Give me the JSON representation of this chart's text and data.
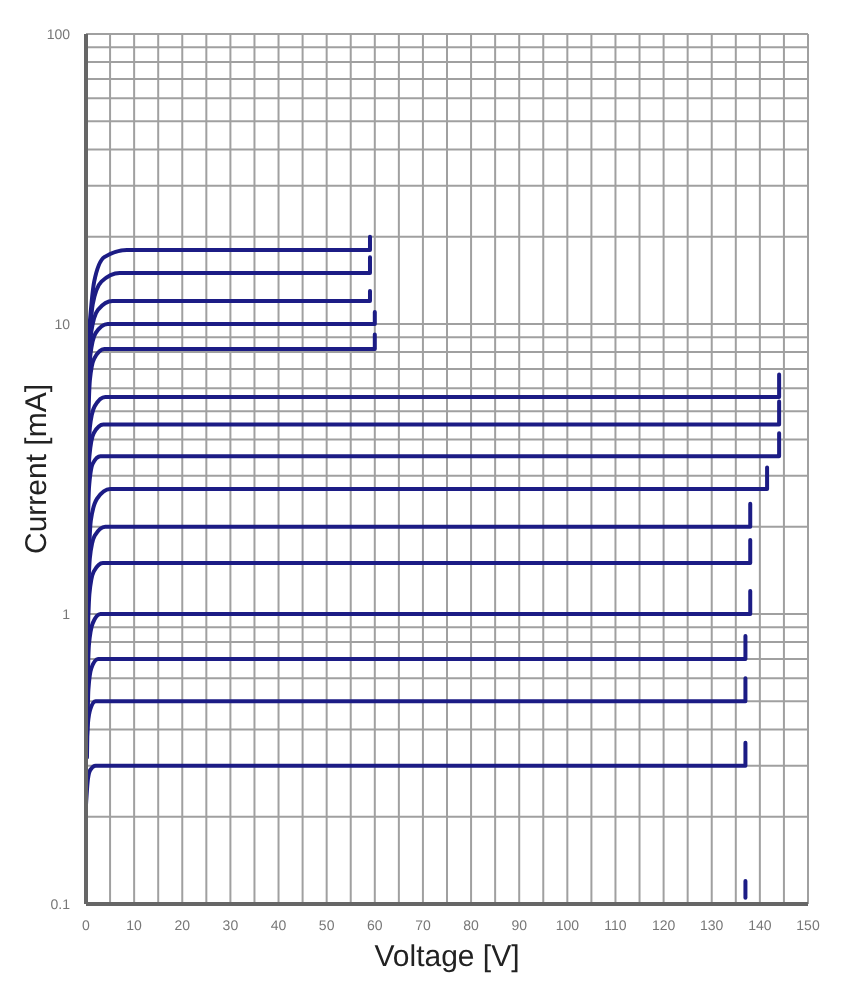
{
  "chart_data": {
    "type": "line",
    "xlabel": "Voltage [V]",
    "ylabel": "Current [mA]",
    "log": "y",
    "grid": true,
    "marker": "none",
    "line_style": "solid",
    "xlim": [
      0,
      150
    ],
    "xticks": [
      0,
      {
        "value": 5,
        "label": null
      },
      10,
      {
        "value": 15,
        "label": null
      },
      20,
      {
        "value": 25,
        "label": null
      },
      30,
      {
        "value": 35,
        "label": null
      },
      40,
      {
        "value": 45,
        "label": null
      },
      50,
      {
        "value": 55,
        "label": null
      },
      60,
      {
        "value": 65,
        "label": null
      },
      70,
      {
        "value": 75,
        "label": null
      },
      80,
      {
        "value": 85,
        "label": null
      },
      90,
      {
        "value": 95,
        "label": null
      },
      100,
      {
        "value": 105,
        "label": null
      },
      110,
      {
        "value": 115,
        "label": null
      },
      120,
      {
        "value": 125,
        "label": null
      },
      130,
      {
        "value": 135,
        "label": null
      },
      140,
      {
        "value": 145,
        "label": null
      },
      150
    ],
    "ylim": [
      0.1,
      100
    ],
    "yticks": [
      0.1,
      {
        "value": 0.2,
        "label": null
      },
      {
        "value": 0.3,
        "label": null
      },
      {
        "value": 0.4,
        "label": null
      },
      {
        "value": 0.5,
        "label": null
      },
      {
        "value": 0.6,
        "label": null
      },
      {
        "value": 0.7,
        "label": null
      },
      {
        "value": 0.8,
        "label": null
      },
      {
        "value": 0.9,
        "label": null
      },
      1,
      {
        "value": 2,
        "label": null
      },
      {
        "value": 3,
        "label": null
      },
      {
        "value": 4,
        "label": null
      },
      {
        "value": 5,
        "label": null
      },
      {
        "value": 6,
        "label": null
      },
      {
        "value": 7,
        "label": null
      },
      {
        "value": 8,
        "label": null
      },
      {
        "value": 9,
        "label": null
      },
      10,
      {
        "value": 20,
        "label": null
      },
      {
        "value": 30,
        "label": null
      },
      {
        "value": 40,
        "label": null
      },
      {
        "value": 50,
        "label": null
      },
      {
        "value": 60,
        "label": null
      },
      {
        "value": 70,
        "label": null
      },
      {
        "value": 80,
        "label": null
      },
      {
        "value": 90,
        "label": null
      },
      100
    ],
    "series": [
      {
        "color": "#1c1c85",
        "x": [
          0.3,
          1.7,
          3.8,
          8.5,
          59,
          59
        ],
        "values": [
          8,
          14,
          17,
          18,
          18,
          20
        ]
      },
      {
        "color": "#1c1c85",
        "x": [
          0.3,
          1.4,
          3.2,
          7,
          59,
          59
        ],
        "values": [
          6.8,
          11.7,
          14,
          15,
          15,
          17
        ]
      },
      {
        "color": "#1c1c85",
        "x": [
          0.3,
          1.1,
          2.5,
          5.5,
          59,
          59
        ],
        "values": [
          5.4,
          9.4,
          11.2,
          12,
          12,
          13
        ]
      },
      {
        "color": "#1c1c85",
        "x": [
          0.3,
          0.9,
          2,
          4.5,
          60,
          60
        ],
        "values": [
          4.5,
          7.8,
          9.3,
          10,
          10,
          11
        ]
      },
      {
        "color": "#1c1c85",
        "x": [
          0.3,
          0.8,
          1.7,
          3.8,
          60,
          60
        ],
        "values": [
          3.7,
          6.4,
          7.6,
          8.2,
          8.2,
          9.2
        ]
      },
      {
        "color": "#1c1c85",
        "x": [
          0.3,
          0.8,
          1.8,
          4,
          144,
          144
        ],
        "values": [
          2.5,
          4.4,
          5.2,
          5.6,
          5.6,
          6.7
        ]
      },
      {
        "color": "#1c1c85",
        "x": [
          0.3,
          0.7,
          1.6,
          3.6,
          144,
          144
        ],
        "values": [
          2,
          3.5,
          4.2,
          4.5,
          4.5,
          5.4
        ]
      },
      {
        "color": "#1c1c85",
        "x": [
          0.3,
          0.6,
          1.4,
          3,
          144,
          144
        ],
        "values": [
          1.6,
          2.7,
          3.3,
          3.5,
          3.5,
          4.2
        ]
      },
      {
        "color": "#1c1c85",
        "x": [
          0.3,
          1,
          2.3,
          5,
          141.5,
          141.5
        ],
        "values": [
          1.2,
          2.1,
          2.5,
          2.7,
          2.7,
          3.2
        ]
      },
      {
        "color": "#1c1c85",
        "x": [
          0.2,
          0.8,
          1.8,
          4,
          138,
          138
        ],
        "values": [
          0.9,
          1.56,
          1.86,
          2,
          2,
          2.4
        ]
      },
      {
        "color": "#1c1c85",
        "x": [
          0.2,
          0.7,
          1.6,
          3.5,
          138,
          138
        ],
        "values": [
          0.68,
          1.17,
          1.4,
          1.5,
          1.5,
          1.8
        ]
      },
      {
        "color": "#1c1c85",
        "x": [
          0.2,
          0.6,
          1.4,
          3,
          138,
          138
        ],
        "values": [
          0.45,
          0.78,
          0.93,
          1,
          1,
          1.2
        ]
      },
      {
        "color": "#1c1c85",
        "x": [
          0.2,
          0.5,
          1.1,
          2.5,
          137,
          137
        ],
        "values": [
          0.32,
          0.55,
          0.65,
          0.7,
          0.7,
          0.84
        ]
      },
      {
        "color": "#1c1c85",
        "x": [
          0,
          0.4,
          0.9,
          2,
          137,
          137
        ],
        "values": [
          0.33,
          0.42,
          0.47,
          0.5,
          0.5,
          0.6
        ]
      },
      {
        "color": "#1c1c85",
        "x": [
          0,
          0.4,
          0.9,
          2,
          137,
          137
        ],
        "values": [
          0.22,
          0.27,
          0.29,
          0.3,
          0.3,
          0.36
        ]
      },
      {
        "color": "#1c1c85",
        "x": [
          137,
          137
        ],
        "values": [
          0.105,
          0.12
        ]
      }
    ]
  }
}
